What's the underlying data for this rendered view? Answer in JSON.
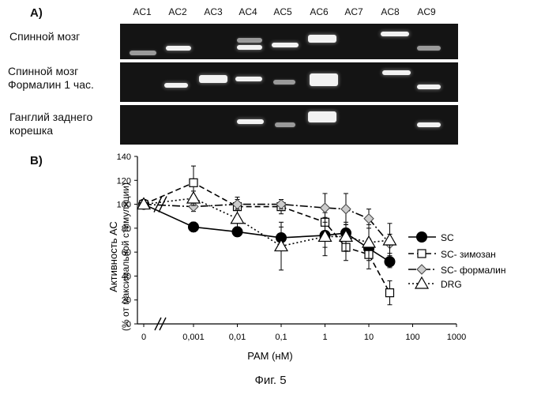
{
  "panel_a": {
    "label": "A)",
    "lanes": [
      "AC1",
      "AC2",
      "AC3",
      "AC4",
      "AC5",
      "AC6",
      "AC7",
      "AC8",
      "AC9"
    ],
    "rows": [
      {
        "label_lines": [
          "Спинной мозг"
        ]
      },
      {
        "label_lines": [
          "Спинной мозг",
          "Формалин 1 час."
        ]
      },
      {
        "label_lines": [
          "Ганглий заднего",
          "корешка"
        ]
      }
    ]
  },
  "panel_b": {
    "label": "B)",
    "ylabel_line1": "Активность АС",
    "ylabel_line2": "(% от максимальной стимуляции)",
    "xlabel": "PAM (нМ)",
    "legend": [
      "SC",
      "SC- зимозан",
      "SC- формалин",
      "DRG"
    ]
  },
  "chart_data": {
    "type": "line",
    "xlabel": "PAM (нМ)",
    "ylabel": "Активность АС (% от максимальной стимуляции)",
    "x_scale": "log with broken zero",
    "x_tick_labels": [
      "0",
      "0,001",
      "0,01",
      "0,1",
      "1",
      "10",
      "100",
      "1000"
    ],
    "y_tick_labels": [
      "0",
      "20",
      "40",
      "60",
      "80",
      "100",
      "120",
      "140"
    ],
    "ylim": [
      0,
      140
    ],
    "legend_position": "right",
    "series": [
      {
        "name": "SC",
        "marker": "circle",
        "line": "solid",
        "x": [
          0,
          0.001,
          0.01,
          0.1,
          1,
          3,
          10,
          30
        ],
        "y": [
          100,
          81,
          77,
          72,
          74,
          76,
          63,
          52
        ],
        "err": [
          0,
          4,
          4,
          9,
          10,
          7,
          8,
          5
        ]
      },
      {
        "name": "SC- зимозан",
        "marker": "square",
        "line": "dashed",
        "x": [
          0,
          0.001,
          0.01,
          0.1,
          1,
          3,
          10,
          30
        ],
        "y": [
          100,
          118,
          98,
          98,
          85,
          64,
          58,
          26
        ],
        "err": [
          0,
          14,
          8,
          6,
          8,
          11,
          12,
          10
        ]
      },
      {
        "name": "SC- формалин",
        "marker": "diamond",
        "line": "dash-dot",
        "x": [
          0,
          0.001,
          0.01,
          0.1,
          1,
          3,
          10,
          30
        ],
        "y": [
          100,
          98,
          100,
          100,
          97,
          96,
          88,
          67
        ],
        "err": [
          0,
          4,
          4,
          4,
          12,
          13,
          8,
          8
        ]
      },
      {
        "name": "DRG",
        "marker": "triangle",
        "line": "dotted",
        "x": [
          0,
          0.001,
          0.01,
          0.1,
          1,
          3,
          10,
          30
        ],
        "y": [
          100,
          105,
          88,
          65,
          73,
          73,
          68,
          70
        ],
        "err": [
          0,
          6,
          7,
          20,
          16,
          12,
          15,
          14
        ]
      }
    ]
  },
  "caption": "Фиг. 5"
}
